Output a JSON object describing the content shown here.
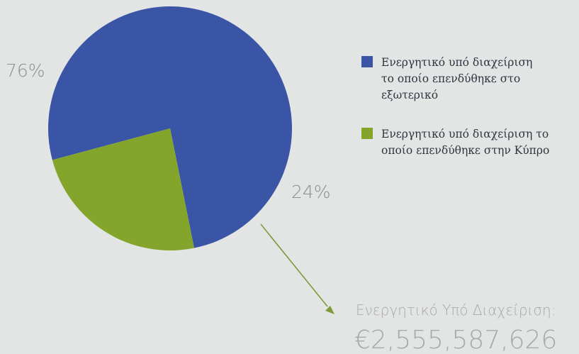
{
  "chart_data": {
    "type": "pie",
    "slices": [
      {
        "label_lines": [
          "Ενεργητικό υπό διαχείριση",
          "το οποίο επενδύθηκε στο",
          "εξωτερικό"
        ],
        "value": 76,
        "value_label": "76%",
        "color": "#3a55a6"
      },
      {
        "label_lines": [
          "Ενεργητικό υπό διαχείριση το",
          "οποίο επενδύθηκε στην Κύπρο"
        ],
        "value": 24,
        "value_label": "24%",
        "color": "#84a52b"
      }
    ],
    "legend_position": "right",
    "callout": {
      "title": "Ενεργητικό Υπό Διαχείριση:",
      "value": "€2,555,587,626",
      "arrow_color": "#7e9b3a"
    }
  }
}
